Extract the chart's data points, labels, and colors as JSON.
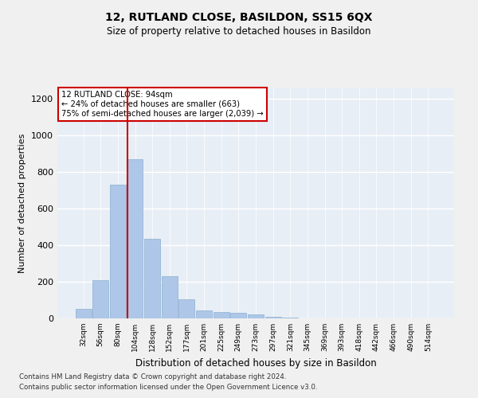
{
  "title": "12, RUTLAND CLOSE, BASILDON, SS15 6QX",
  "subtitle": "Size of property relative to detached houses in Basildon",
  "xlabel": "Distribution of detached houses by size in Basildon",
  "ylabel": "Number of detached properties",
  "footer1": "Contains HM Land Registry data © Crown copyright and database right 2024.",
  "footer2": "Contains public sector information licensed under the Open Government Licence v3.0.",
  "categories": [
    "32sqm",
    "56sqm",
    "80sqm",
    "104sqm",
    "128sqm",
    "152sqm",
    "177sqm",
    "201sqm",
    "225sqm",
    "249sqm",
    "273sqm",
    "297sqm",
    "321sqm",
    "345sqm",
    "369sqm",
    "393sqm",
    "418sqm",
    "442sqm",
    "466sqm",
    "490sqm",
    "514sqm"
  ],
  "values": [
    50,
    210,
    730,
    870,
    435,
    230,
    105,
    45,
    35,
    30,
    20,
    10,
    5,
    0,
    0,
    0,
    0,
    0,
    0,
    0,
    0
  ],
  "bar_color": "#aec6e8",
  "bar_edge_color": "#8ab0d0",
  "background_color": "#e8eef5",
  "grid_color": "#ffffff",
  "red_line_x": 2.583,
  "annotation_text": "12 RUTLAND CLOSE: 94sqm\n← 24% of detached houses are smaller (663)\n75% of semi-detached houses are larger (2,039) →",
  "annotation_box_color": "#ffffff",
  "annotation_box_edge": "#cc0000",
  "fig_bg": "#f0f0f0",
  "ylim": [
    0,
    1260
  ],
  "yticks": [
    0,
    200,
    400,
    600,
    800,
    1000,
    1200
  ]
}
